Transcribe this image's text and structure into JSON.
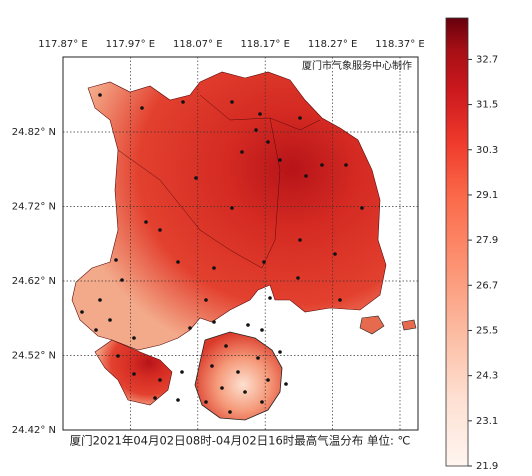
{
  "map": {
    "credit": "厦门市气象服务中心制作",
    "lon_labels": [
      "117.87° E",
      "117.97° E",
      "118.07° E",
      "118.17° E",
      "118.27° E",
      "118.37° E"
    ],
    "lat_labels": [
      "24.82° N",
      "24.72° N",
      "24.62° N",
      "24.52° N",
      "24.42° N"
    ],
    "caption": "厦门2021年04月02日08时-04月02日16时最高气温分布 单位: ℃"
  },
  "colorbar": {
    "range": [
      21.9,
      33.8
    ],
    "ticks": [
      21.9,
      23.1,
      24.3,
      25.5,
      26.7,
      27.9,
      29.1,
      30.3,
      31.5,
      32.7
    ]
  }
}
